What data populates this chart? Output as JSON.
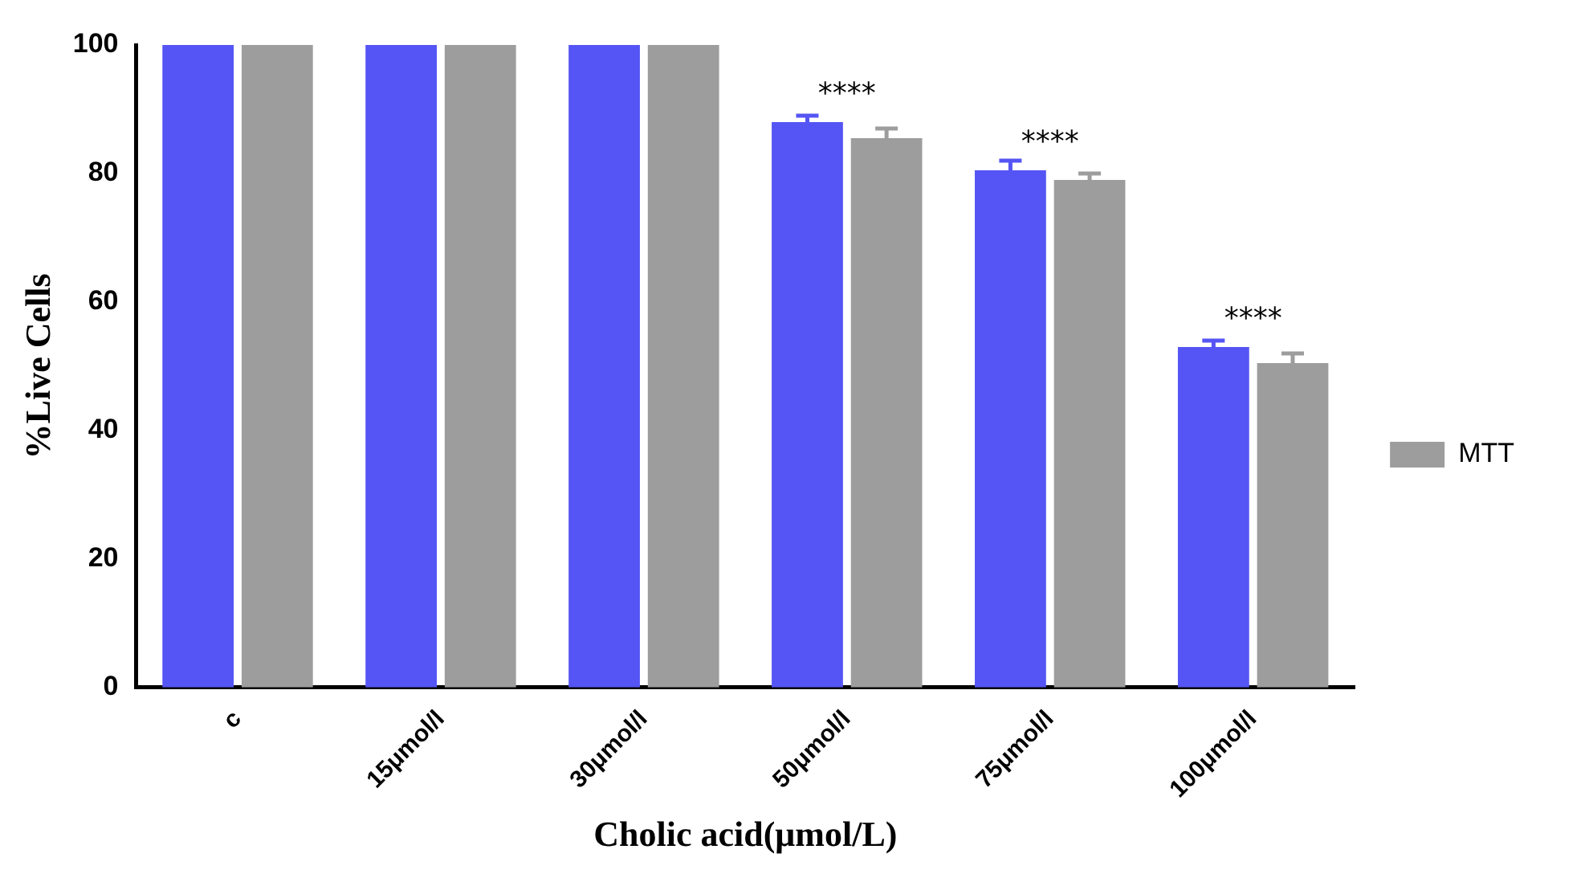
{
  "chart_data": {
    "type": "bar",
    "xlabel": "Cholic acid(μmol/L)",
    "ylabel": "%Live Cells",
    "categories": [
      "c",
      "15μmol/l",
      "30μmol/l",
      "50μmol/l",
      "75μmol/l",
      "100μmol/l"
    ],
    "series": [
      {
        "color": "#5555f5",
        "values": [
          100,
          100,
          100,
          88,
          80.5,
          53
        ],
        "errors": [
          null,
          null,
          null,
          1,
          1.5,
          1
        ]
      },
      {
        "name": "MTT",
        "color": "#9d9d9d",
        "values": [
          100,
          100,
          100,
          85.5,
          79,
          50.5
        ],
        "errors": [
          null,
          null,
          null,
          1.5,
          1,
          1.5
        ]
      }
    ],
    "ylim": [
      0,
      100
    ],
    "yticks": [
      0,
      20,
      40,
      60,
      80,
      100
    ],
    "grid": false,
    "legend": "right",
    "annotations": [
      {
        "text": "****",
        "x": "50μmol/l",
        "y": 88
      },
      {
        "text": "****",
        "x": "75μmol/l",
        "y": 80.5
      },
      {
        "text": "****",
        "x": "100μmol/l",
        "y": 53
      }
    ]
  }
}
